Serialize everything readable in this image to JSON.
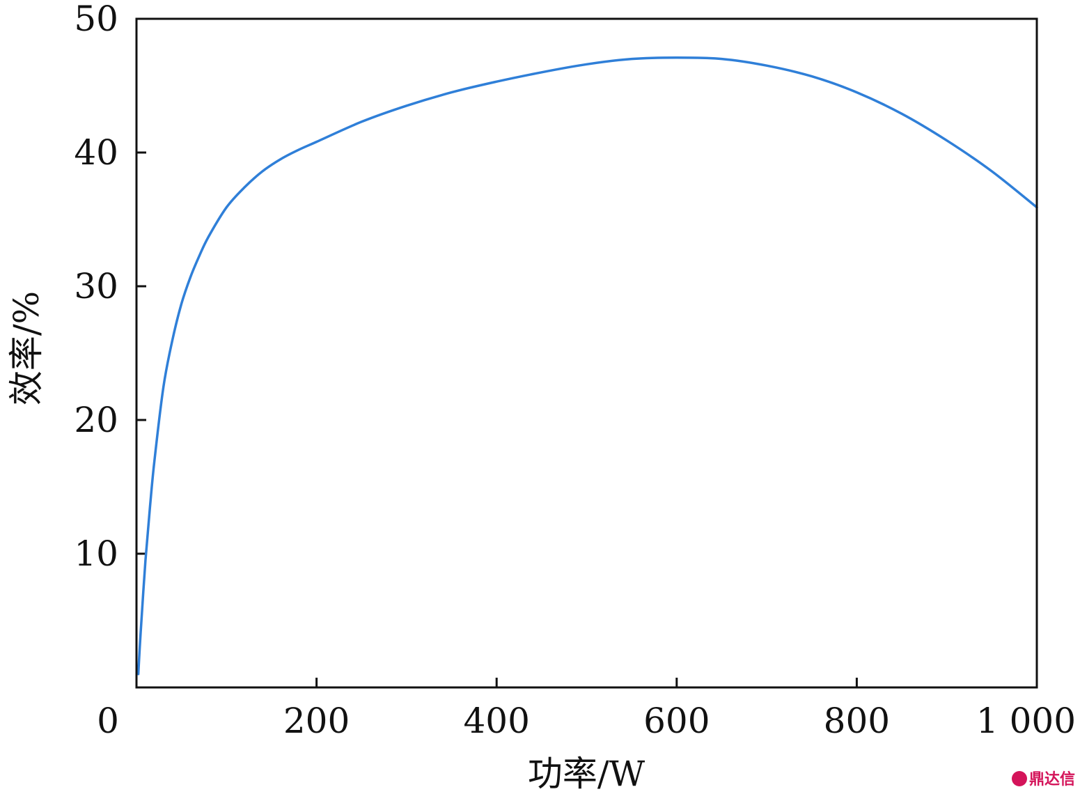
{
  "chart_data": {
    "type": "line",
    "title": "",
    "xlabel": "功率/W",
    "ylabel": "效率/%",
    "xlim": [
      0,
      1000
    ],
    "ylim": [
      0,
      50
    ],
    "x_ticks": [
      {
        "value": 0,
        "label": "0"
      },
      {
        "value": 200,
        "label": "200"
      },
      {
        "value": 400,
        "label": "400"
      },
      {
        "value": 600,
        "label": "600"
      },
      {
        "value": 800,
        "label": "800"
      },
      {
        "value": 1000,
        "label": "1 000"
      }
    ],
    "y_ticks": [
      {
        "value": 10,
        "label": "10"
      },
      {
        "value": 20,
        "label": "20"
      },
      {
        "value": 30,
        "label": "30"
      },
      {
        "value": 40,
        "label": "40"
      },
      {
        "value": 50,
        "label": "50"
      }
    ],
    "grid": false,
    "series": [
      {
        "color": "#2f7fd8",
        "x": [
          2,
          5,
          10,
          15,
          20,
          30,
          40,
          50,
          60,
          70,
          80,
          100,
          120,
          140,
          160,
          180,
          200,
          250,
          300,
          350,
          400,
          450,
          500,
          550,
          600,
          650,
          700,
          750,
          800,
          850,
          900,
          950,
          1000
        ],
        "y": [
          1.0,
          4.5,
          9.5,
          13.5,
          17.0,
          22.5,
          26.0,
          28.7,
          30.7,
          32.3,
          33.7,
          35.9,
          37.4,
          38.6,
          39.5,
          40.2,
          40.8,
          42.3,
          43.5,
          44.5,
          45.3,
          46.0,
          46.6,
          47.0,
          47.1,
          47.0,
          46.5,
          45.7,
          44.5,
          42.9,
          40.9,
          38.6,
          35.9
        ]
      }
    ]
  },
  "watermark": {
    "text": "鼎达信",
    "icon": "logo-badge-icon"
  }
}
